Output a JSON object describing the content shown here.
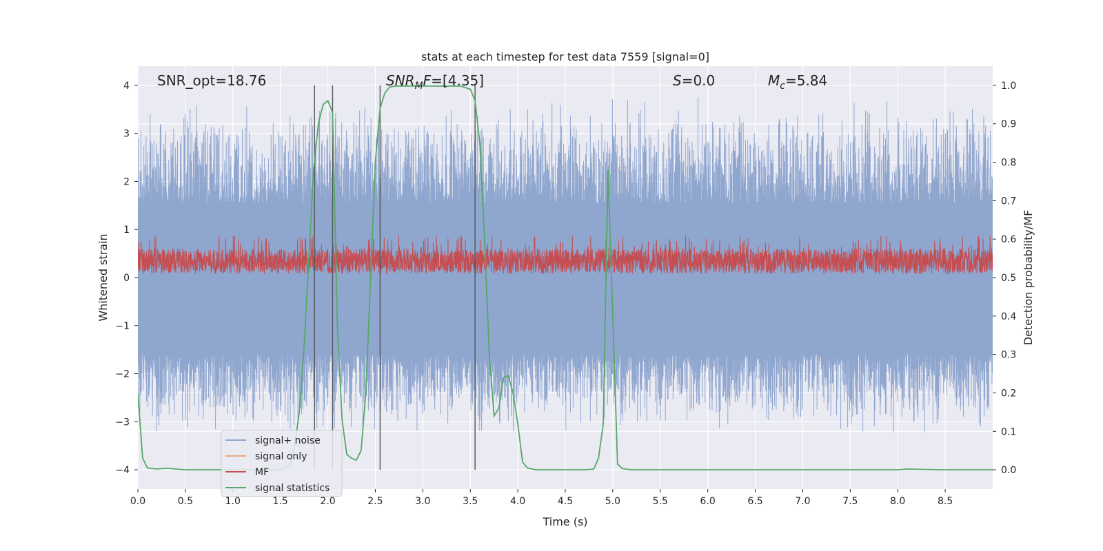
{
  "chart_data": {
    "type": "line",
    "title": "stats at each timestep for test data 7559 [signal=0]",
    "xlabel": "Time (s)",
    "ylabel_left": "Whitened strain",
    "ylabel_right": "Detection probability/MF",
    "xlim": [
      0.0,
      9.0
    ],
    "ylim_left": [
      -4.4,
      4.4
    ],
    "ylim_right": [
      -0.05,
      1.05
    ],
    "grid": true,
    "xticks": [
      "0.0",
      "0.5",
      "1.0",
      "1.5",
      "2.0",
      "2.5",
      "3.0",
      "3.5",
      "4.0",
      "4.5",
      "5.0",
      "5.5",
      "6.0",
      "6.5",
      "7.0",
      "7.5",
      "8.0",
      "8.5"
    ],
    "yticks_left": [
      "4",
      "3",
      "2",
      "1",
      "0",
      "−1",
      "−2",
      "−3",
      "−4"
    ],
    "yticks_right": [
      "1.0",
      "0.9",
      "0.8",
      "0.7",
      "0.6",
      "0.5",
      "0.4",
      "0.3",
      "0.2",
      "0.1",
      "0.0"
    ],
    "annotations": {
      "snr_opt": "SNR_opt=18.76",
      "snr_mf_sym": "SNR",
      "snr_mf_sub": "M",
      "snr_mf_f": "F",
      "snr_mf_val": "=[4.35]",
      "s_sym": "S",
      "s_val": "=0.0",
      "mc_sym": "M",
      "mc_sub": "c",
      "mc_val": "=5.84"
    },
    "vlines_x": [
      1.86,
      2.05,
      2.55,
      3.55
    ],
    "legend": {
      "placement": "lower-left",
      "entries": [
        "signal+ noise",
        "signal only",
        "MF",
        "signal statistics"
      ]
    },
    "series": [
      {
        "name": "signal+ noise",
        "axis": "left",
        "color": "#8fa6cf",
        "envelope_base": [
          -1.6,
          1.55
        ],
        "envelope_peak": [
          -3.3,
          3.8
        ],
        "points_per_second": 520,
        "seed": 7559
      },
      {
        "name": "signal only",
        "axis": "left",
        "color": "#e8a882",
        "values": []
      },
      {
        "name": "MF",
        "axis": "right",
        "color": "#c44e52",
        "band": [
          0.51,
          0.575
        ],
        "band_peak": 0.61,
        "points_per_second": 430,
        "seed": 42
      },
      {
        "name": "signal statistics",
        "axis": "right",
        "color": "#55a868",
        "x": [
          0.0,
          0.05,
          0.1,
          0.15,
          0.2,
          0.3,
          0.4,
          0.5,
          0.7,
          0.9,
          1.1,
          1.3,
          1.5,
          1.6,
          1.65,
          1.7,
          1.75,
          1.8,
          1.85,
          1.9,
          1.95,
          2.0,
          2.05,
          2.1,
          2.15,
          2.2,
          2.25,
          2.3,
          2.35,
          2.4,
          2.45,
          2.5,
          2.55,
          2.6,
          2.65,
          2.7,
          2.8,
          3.0,
          3.2,
          3.4,
          3.5,
          3.55,
          3.6,
          3.65,
          3.7,
          3.75,
          3.8,
          3.85,
          3.9,
          3.95,
          4.0,
          4.05,
          4.1,
          4.15,
          4.2,
          4.3,
          4.5,
          4.7,
          4.8,
          4.85,
          4.9,
          4.95,
          5.0,
          5.05,
          5.1,
          5.2,
          5.5,
          6.0,
          6.5,
          7.0,
          7.5,
          8.0,
          8.1,
          8.5,
          9.0
        ],
        "values": [
          0.2,
          0.03,
          0.005,
          0.003,
          0.002,
          0.004,
          0.002,
          0.0,
          0.0,
          0.0,
          0.0,
          0.0,
          0.0,
          0.01,
          0.06,
          0.15,
          0.32,
          0.55,
          0.78,
          0.9,
          0.95,
          0.96,
          0.93,
          0.38,
          0.13,
          0.04,
          0.03,
          0.025,
          0.05,
          0.2,
          0.5,
          0.8,
          0.94,
          0.98,
          0.995,
          0.998,
          0.998,
          0.998,
          0.998,
          0.998,
          0.99,
          0.96,
          0.85,
          0.6,
          0.3,
          0.14,
          0.16,
          0.24,
          0.245,
          0.2,
          0.12,
          0.02,
          0.005,
          0.002,
          0.0,
          0.0,
          0.0,
          0.0,
          0.002,
          0.03,
          0.12,
          0.78,
          0.4,
          0.015,
          0.003,
          0.0,
          0.0,
          0.0,
          0.0,
          0.0,
          0.0,
          0.0,
          0.002,
          0.0,
          0.0
        ]
      }
    ]
  }
}
